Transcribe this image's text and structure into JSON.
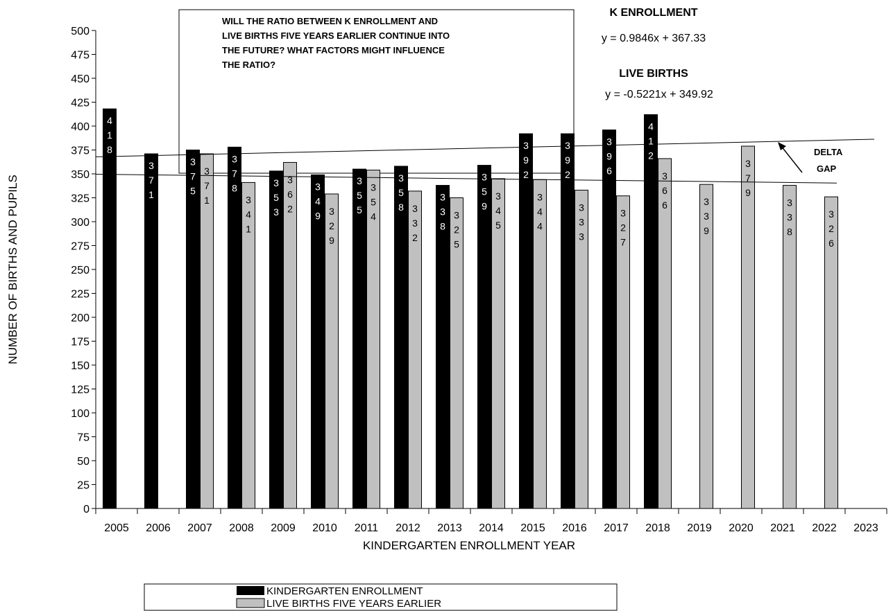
{
  "chart_data": {
    "type": "bar",
    "title": "",
    "xlabel": "KINDERGARTEN ENROLLMENT YEAR",
    "ylabel": "NUMBER OF BIRTHS AND PUPILS",
    "ylim": [
      0,
      500
    ],
    "ytick_step": 25,
    "grid": false,
    "legend_position": "bottom",
    "categories": [
      "2005",
      "2006",
      "2007",
      "2008",
      "2009",
      "2010",
      "2011",
      "2012",
      "2013",
      "2014",
      "2015",
      "2016",
      "2017",
      "2018",
      "2019",
      "2020",
      "2021",
      "2022",
      "2023"
    ],
    "series": [
      {
        "name": "KINDERGARTEN ENROLLMENT",
        "color": "#000000",
        "label_color": "#ffffff",
        "values": [
          418,
          371,
          375,
          378,
          353,
          349,
          355,
          358,
          338,
          359,
          392,
          392,
          396,
          412,
          null,
          null,
          null,
          null,
          null
        ]
      },
      {
        "name": "LIVE BIRTHS FIVE YEARS EARLIER",
        "color": "#c0c0c0",
        "label_color": "#000000",
        "values": [
          null,
          null,
          371,
          341,
          362,
          329,
          354,
          332,
          325,
          345,
          344,
          333,
          327,
          366,
          339,
          379,
          338,
          326,
          null
        ]
      }
    ],
    "trendlines": [
      {
        "name": "K ENROLLMENT",
        "equation": "y = 0.9846x + 367.33",
        "slope": 0.9846,
        "intercept": 367.33
      },
      {
        "name": "LIVE BIRTHS",
        "equation": "y = -0.5221x + 349.92",
        "slope": -0.5221,
        "intercept": 349.92
      }
    ],
    "annotations": {
      "question_lines": [
        "WILL THE RATIO BETWEEN K ENROLLMENT AND",
        "LIVE BIRTHS FIVE YEARS EARLIER CONTINUE INTO",
        "THE FUTURE?  WHAT FACTORS MIGHT INFLUENCE",
        "THE RATIO?"
      ],
      "delta_gap_lines": [
        "DELTA",
        "GAP"
      ]
    }
  }
}
